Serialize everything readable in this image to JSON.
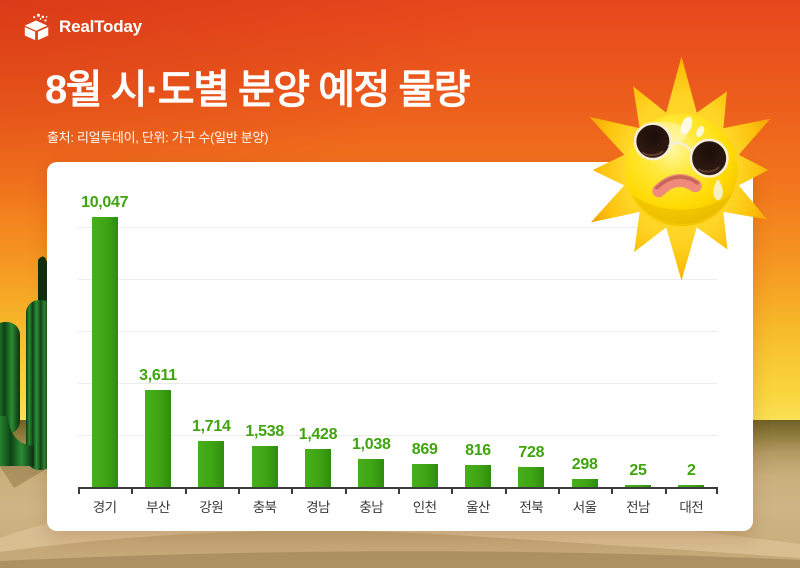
{
  "brand": {
    "name": "RealToday"
  },
  "header": {
    "title": "8월 시·도별 분양 예정 물량",
    "subtitle": "출처: 리얼투데이, 단위: 가구 수(일반 분양)"
  },
  "chart_data": {
    "type": "bar",
    "title": "8월 시·도별 분양 예정 물량",
    "source": "리얼투데이",
    "unit": "가구 수(일반 분양)",
    "categories": [
      "경기",
      "부산",
      "강원",
      "충북",
      "경남",
      "충남",
      "인천",
      "울산",
      "전북",
      "서울",
      "전남",
      "대전"
    ],
    "values": [
      10047,
      3611,
      1714,
      1538,
      1428,
      1038,
      869,
      816,
      728,
      298,
      25,
      2
    ],
    "value_labels": [
      "10,047",
      "3,611",
      "1,714",
      "1,538",
      "1,428",
      "1,038",
      "869",
      "816",
      "728",
      "298",
      "25",
      "2"
    ],
    "xlabel": "",
    "ylabel": "",
    "ylim": [
      0,
      10400
    ],
    "gridlines": {
      "orientation": "horizontal",
      "interval": 2000,
      "count": 5,
      "y_axis_labels": "none"
    },
    "legend": "none",
    "bar_color": "#3fa414",
    "value_label_color": "#3fa40e",
    "category_label_color": "#3a3a3a"
  },
  "scene": {
    "icons": [
      {
        "name": "realtoday-cube-logo-icon",
        "meaning": "white pixel cube logo mark"
      },
      {
        "name": "sweating-sun-with-sunglasses-illustration",
        "meaning": "yellow sun wearing round sunglasses, frowning, sweating"
      },
      {
        "name": "cactus-illustration",
        "meaning": "green desert cactus at left edge"
      }
    ],
    "palette": {
      "sky_top": "#e7471d",
      "sky_orange": "#f2791d",
      "sky_yellow": "#f9d53c",
      "sand": "#cab07c",
      "card_background": "#ffffff",
      "text_on_sky": "#ffffff",
      "bar_green": "#3fa414"
    }
  }
}
